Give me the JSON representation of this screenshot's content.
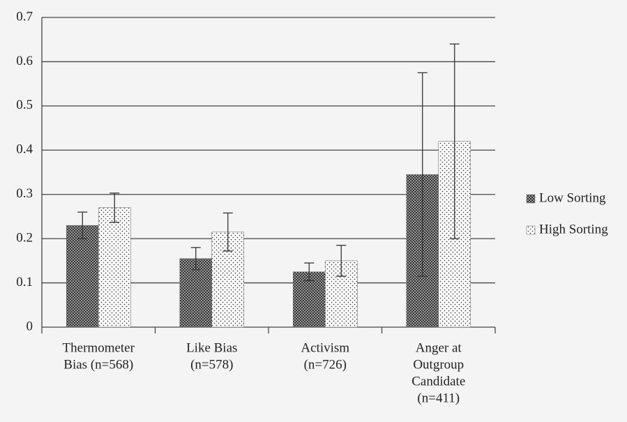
{
  "chart_data": {
    "type": "bar",
    "categories": [
      [
        "Thermometer",
        "Bias (n=568)"
      ],
      [
        "Like Bias",
        "(n=578)"
      ],
      [
        "Activism",
        "(n=726)"
      ],
      [
        "Anger at",
        "Outgroup",
        "Candidate",
        "(n=411)"
      ]
    ],
    "series": [
      {
        "name": "Low Sorting",
        "color": "#444444",
        "pattern": "crosshatch",
        "values": [
          0.23,
          0.155,
          0.125,
          0.345
        ],
        "errors": [
          0.03,
          0.025,
          0.02,
          0.23
        ]
      },
      {
        "name": "High Sorting",
        "color": "#ffffff",
        "pattern": "dots",
        "values": [
          0.27,
          0.215,
          0.15,
          0.42
        ],
        "errors": [
          0.033,
          0.043,
          0.035,
          0.22
        ]
      }
    ],
    "ylim": [
      0,
      0.7
    ],
    "yticks": [
      0,
      0.1,
      0.2,
      0.3,
      0.4,
      0.5,
      0.6,
      0.7
    ],
    "grid": true,
    "legend": "right"
  }
}
